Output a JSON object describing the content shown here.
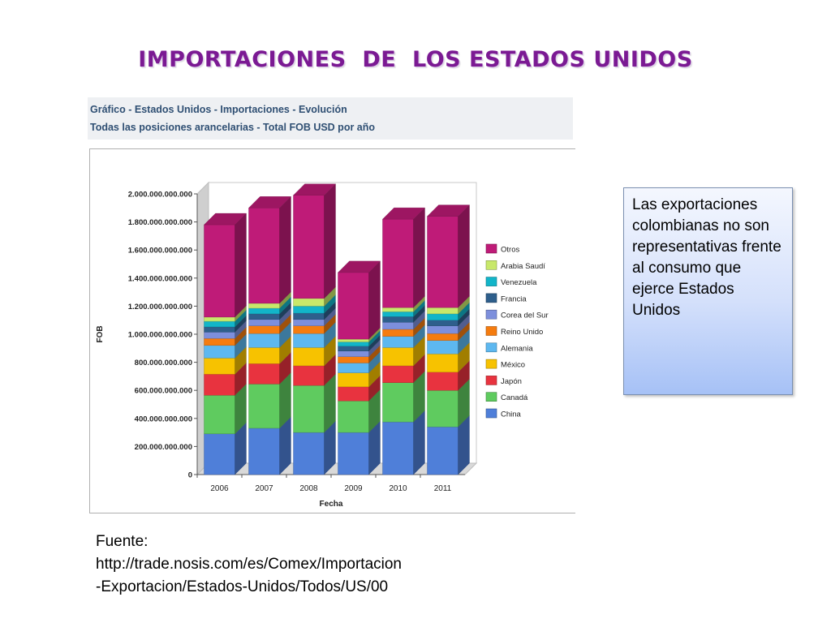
{
  "slide": {
    "title": "IMPORTACIONES  DE  LOS ESTADOS UNIDOS"
  },
  "chart_header": {
    "line1": "Gráfico - Estados Unidos - Importaciones - Evolución",
    "line2": "Todas las posiciones arancelarias - Total FOB USD por año"
  },
  "note": {
    "text": "Las exportaciones colombianas  no son representativas frente  al consumo que ejerce  Estados Unidos"
  },
  "source": {
    "label": "Fuente:",
    "line1": "http://trade.nosis.com/es/Comex/Importacion",
    "line2": "-Exportacion/Estados-Unidos/Todos/US/00"
  },
  "chart_data": {
    "type": "bar",
    "stacked": true,
    "style": "3d",
    "xlabel": "Fecha",
    "ylabel": "FOB",
    "ylim": [
      0,
      2000000000000
    ],
    "yticks": [
      0,
      200000000000,
      400000000000,
      600000000000,
      800000000000,
      1000000000000,
      1200000000000,
      1400000000000,
      1600000000000,
      1800000000000,
      2000000000000
    ],
    "ytick_labels": [
      "0",
      "200.000.000.000",
      "400.000.000.000",
      "600.000.000.000",
      "800.000.000.000",
      "1.000.000.000.000",
      "1.200.000.000.000",
      "1.400.000.000.000",
      "1.600.000.000.000",
      "1.800.000.000.000",
      "2.000.000.000.000"
    ],
    "categories": [
      "2006",
      "2007",
      "2008",
      "2009",
      "2010",
      "2011"
    ],
    "legend_position": "right",
    "series": [
      {
        "name": "China",
        "color": "#4f7fd9",
        "values": [
          290000000000,
          330000000000,
          300000000000,
          300000000000,
          375000000000,
          340000000000
        ]
      },
      {
        "name": "Canadá",
        "color": "#5fcb5f",
        "values": [
          275000000000,
          315000000000,
          335000000000,
          225000000000,
          280000000000,
          260000000000
        ]
      },
      {
        "name": "Japón",
        "color": "#e8333f",
        "values": [
          150000000000,
          145000000000,
          140000000000,
          100000000000,
          120000000000,
          130000000000
        ]
      },
      {
        "name": "México",
        "color": "#f7c200",
        "values": [
          115000000000,
          115000000000,
          130000000000,
          100000000000,
          130000000000,
          130000000000
        ]
      },
      {
        "name": "Alemania",
        "color": "#5db8f0",
        "values": [
          90000000000,
          100000000000,
          100000000000,
          70000000000,
          80000000000,
          95000000000
        ]
      },
      {
        "name": "Reino Unido",
        "color": "#f57c0f",
        "values": [
          50000000000,
          55000000000,
          55000000000,
          45000000000,
          50000000000,
          50000000000
        ]
      },
      {
        "name": "Corea del Sur",
        "color": "#7d8fdc",
        "values": [
          45000000000,
          45000000000,
          45000000000,
          40000000000,
          50000000000,
          55000000000
        ]
      },
      {
        "name": "Francia",
        "color": "#2e5f8c",
        "values": [
          37000000000,
          40000000000,
          45000000000,
          35000000000,
          40000000000,
          40000000000
        ]
      },
      {
        "name": "Venezuela",
        "color": "#12b5c9",
        "values": [
          40000000000,
          40000000000,
          50000000000,
          30000000000,
          35000000000,
          45000000000
        ]
      },
      {
        "name": "Arabia Saudí",
        "color": "#c8e86a",
        "values": [
          30000000000,
          35000000000,
          55000000000,
          20000000000,
          30000000000,
          45000000000
        ]
      },
      {
        "name": "Otros",
        "color": "#bf1b78",
        "values": [
          658000000000,
          680000000000,
          735000000000,
          475000000000,
          630000000000,
          650000000000
        ]
      }
    ]
  }
}
